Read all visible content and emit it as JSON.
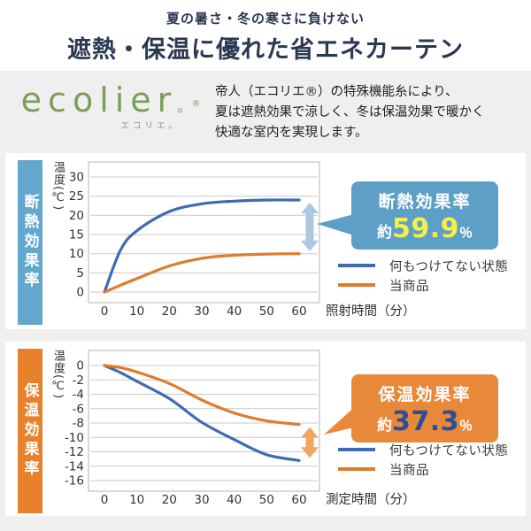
{
  "header": {
    "subtitle": "夏の暑さ・冬の寒さに負けない",
    "title": "遮熱・保温に優れた省エネカーテン"
  },
  "intro": {
    "logo": {
      "text": "ecolier",
      "mark": "。",
      "reg": "®",
      "sub": "エコリエ。",
      "color": "#7c9e59"
    },
    "description_lines": [
      "帝人（エコリエ®）の特殊機能糸により、",
      "夏は遮熱効果で涼しく、冬は保温効果で暖かく",
      "快適な室内を実現します。"
    ]
  },
  "chart_data": [
    {
      "type": "line",
      "side_label": "断熱効果率",
      "side_color": "#64a7cd",
      "ylabel": "温度(℃)",
      "xlabel": "照射時間（分）",
      "x": [
        0,
        5,
        10,
        20,
        30,
        40,
        50,
        60
      ],
      "xticks": [
        0,
        10,
        20,
        30,
        40,
        50,
        60
      ],
      "yticks": [
        30,
        25,
        20,
        15,
        10,
        5,
        0
      ],
      "xlim": [
        0,
        60
      ],
      "ylim": [
        0,
        30
      ],
      "grid": true,
      "legend_position": "right-below",
      "series": [
        {
          "name": "何もつけてない状態",
          "color": "#3d6cb2",
          "values": [
            0,
            11,
            16,
            21,
            23,
            23.7,
            24,
            24
          ]
        },
        {
          "name": "当商品",
          "color": "#e07b2c",
          "values": [
            0,
            1.8,
            3.5,
            6.8,
            8.8,
            9.6,
            9.9,
            10
          ]
        }
      ],
      "arrow_color": "#abc7e2",
      "callout": {
        "label": "断熱効果率",
        "prefix": "約",
        "value": "59.9",
        "unit": "％",
        "bg": "#5d9fc7",
        "value_color": "#f6ee4b"
      }
    },
    {
      "type": "line",
      "side_label": "保温効果率",
      "side_color": "#e8812c",
      "ylabel": "温度(℃)",
      "xlabel": "測定時間（分）",
      "x": [
        0,
        5,
        10,
        20,
        30,
        40,
        50,
        60
      ],
      "xticks": [
        0,
        10,
        20,
        30,
        40,
        50,
        60
      ],
      "yticks": [
        0,
        -2,
        -4,
        -6,
        -8,
        -10,
        -12,
        -14,
        -16
      ],
      "xlim": [
        0,
        60
      ],
      "ylim": [
        -16,
        0
      ],
      "grid": true,
      "legend_position": "right-below",
      "series": [
        {
          "name": "何もつけてない状態",
          "color": "#3d6cb2",
          "values": [
            0,
            -1,
            -2.2,
            -4.6,
            -7.9,
            -10.3,
            -12.4,
            -13.2
          ]
        },
        {
          "name": "当商品",
          "color": "#e07b2c",
          "values": [
            0,
            -0.3,
            -0.9,
            -2.5,
            -4.8,
            -6.6,
            -7.7,
            -8.2
          ]
        }
      ],
      "arrow_color": "#efa660",
      "callout": {
        "label": "保温効果率",
        "prefix": "約",
        "value": "37.3",
        "unit": "％",
        "bg": "#e8883b",
        "value_color": "#2b4d9a"
      }
    }
  ]
}
